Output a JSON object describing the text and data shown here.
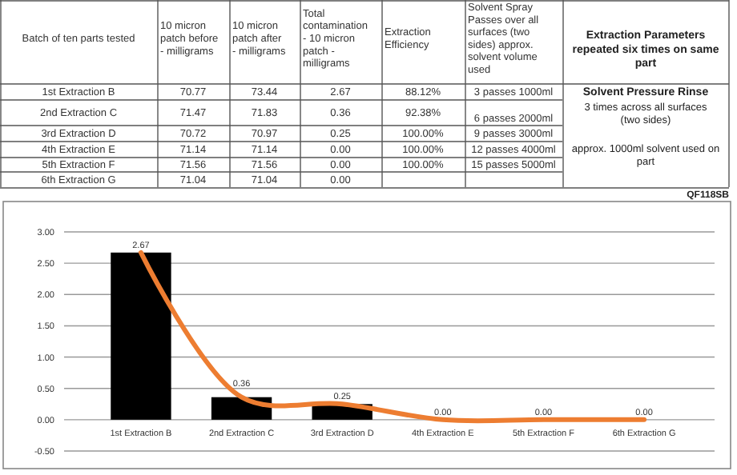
{
  "chart_data": [
    {
      "type": "other",
      "categories": [
        "Batch of ten parts tested",
        "10 micron patch before - milligrams",
        "10 micron patch after - milligrams",
        "Total contamination - 10 micron patch - milligrams",
        "Extraction Efficiency",
        "Solvent Spray Passes over all surfaces (two sides) approx. solvent volume used"
      ],
      "cell_labels": [
        [
          "1st Extraction B",
          "70.77",
          "73.44",
          "2.67",
          "88.12%",
          "3 passes 1000ml"
        ],
        [
          "2nd Extraction C",
          "71.47",
          "71.83",
          "0.36",
          "92.38%",
          "6 passes 2000ml"
        ],
        [
          "3rd Extraction D",
          "70.72",
          "70.97",
          "0.25",
          "100.00%",
          "9 passes 3000ml"
        ],
        [
          "4th Extraction E",
          "71.14",
          "71.14",
          "0.00",
          "100.00%",
          "12 passes 4000ml"
        ],
        [
          "5th Extraction F",
          "71.56",
          "71.56",
          "0.00",
          "100.00%",
          "15 passes 5000ml"
        ],
        [
          "6th Extraction G",
          "71.04",
          "71.04",
          "0.00",
          null,
          null
        ]
      ],
      "annotations": [
        "Extraction Parameters repeated six times on same part",
        "Solvent Pressure Rinse",
        "3 times across all surfaces (two sides)",
        "approx. 1000ml solvent used on part",
        "QF118SB"
      ]
    },
    {
      "type": "bar",
      "categories": [
        "1st Extraction B",
        "2nd Extraction C",
        "3rd Extraction D",
        "4th Extraction E",
        "5th Extraction F",
        "6th Extraction G"
      ],
      "series": [
        {
          "type": "bar",
          "color": "#000000",
          "values": [
            2.67,
            0.36,
            0.25,
            0,
            0,
            0
          ],
          "value_labels": [
            "2.67",
            "0.36",
            "0.25",
            "0.00",
            "0.00",
            "0.00"
          ]
        },
        {
          "type": "line",
          "color": "#ed7d31",
          "values": [
            2.67,
            0.36,
            0.25,
            0,
            0,
            0
          ]
        }
      ],
      "ylim": [
        -0.5,
        3
      ],
      "yticks": [
        {
          "value": -0.5,
          "label": "-0.50"
        },
        {
          "value": 0,
          "label": "0.00"
        },
        {
          "value": 0.5,
          "label": "0.50"
        },
        {
          "value": 1,
          "label": "1.00"
        },
        {
          "value": 1.5,
          "label": "1.50"
        },
        {
          "value": 2,
          "label": "2.00"
        },
        {
          "value": 2.5,
          "label": "2.50"
        },
        {
          "value": 3,
          "label": "3.00"
        }
      ],
      "grid": "y",
      "marker": "none",
      "line_style": "solid"
    }
  ]
}
